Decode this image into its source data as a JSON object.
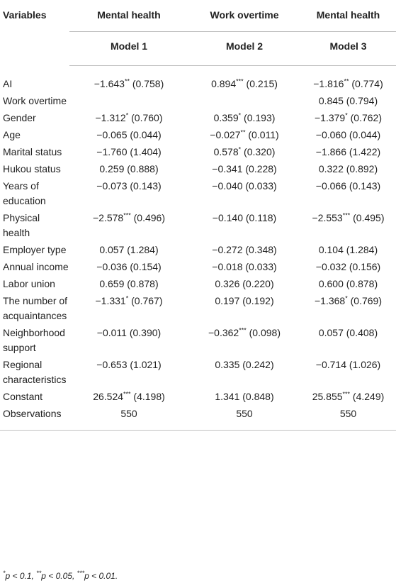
{
  "header": {
    "variables": "Variables",
    "dv": [
      "Mental health",
      "Work overtime",
      "Mental health"
    ],
    "models": [
      "Model 1",
      "Model 2",
      "Model 3"
    ]
  },
  "rows": [
    {
      "label": "AI",
      "m1": "−1.643** (0.758)",
      "m2": "0.894*** (0.215)",
      "m3": "−1.816** (0.774)"
    },
    {
      "label": "Work overtime",
      "m1": "",
      "m2": "",
      "m3": "0.845 (0.794)"
    },
    {
      "label": "Gender",
      "m1": "−1.312* (0.760)",
      "m2": "0.359* (0.193)",
      "m3": "−1.379* (0.762)"
    },
    {
      "label": "Age",
      "m1": "−0.065 (0.044)",
      "m2": "−0.027** (0.011)",
      "m3": "−0.060 (0.044)"
    },
    {
      "label": "Marital status",
      "m1": "−1.760 (1.404)",
      "m2": "0.578* (0.320)",
      "m3": "−1.866 (1.422)"
    },
    {
      "label": "Hukou status",
      "m1": "0.259 (0.888)",
      "m2": "−0.341 (0.228)",
      "m3": "0.322 (0.892)"
    },
    {
      "label": "Years of education",
      "m1": "−0.073 (0.143)",
      "m2": "−0.040 (0.033)",
      "m3": "−0.066 (0.143)"
    },
    {
      "label": "Physical health",
      "m1": "−2.578*** (0.496)",
      "m2": "−0.140 (0.118)",
      "m3": "−2.553*** (0.495)"
    },
    {
      "label": "Employer type",
      "m1": "0.057 (1.284)",
      "m2": "−0.272 (0.348)",
      "m3": "0.104 (1.284)"
    },
    {
      "label": "Annual income",
      "m1": "−0.036 (0.154)",
      "m2": "−0.018 (0.033)",
      "m3": "−0.032 (0.156)"
    },
    {
      "label": "Labor union",
      "m1": "0.659 (0.878)",
      "m2": "0.326 (0.220)",
      "m3": "0.600 (0.878)"
    },
    {
      "label": "The number of acquaintances",
      "m1": "−1.331* (0.767)",
      "m2": "0.197 (0.192)",
      "m3": "−1.368* (0.769)"
    },
    {
      "label": "Neighborhood support",
      "m1": "−0.011 (0.390)",
      "m2": "−0.362*** (0.098)",
      "m3": "0.057 (0.408)"
    },
    {
      "label": "Regional characteristics",
      "m1": "−0.653 (1.021)",
      "m2": "0.335 (0.242)",
      "m3": "−0.714 (1.026)"
    },
    {
      "label": "Constant",
      "m1": "26.524*** (4.198)",
      "m2": "1.341 (0.848)",
      "m3": "25.855*** (4.249)"
    },
    {
      "label": "Observations",
      "m1": "550",
      "m2": "550",
      "m3": "550"
    }
  ],
  "footnote": "*p < 0.1, **p < 0.05, ***p < 0.01."
}
